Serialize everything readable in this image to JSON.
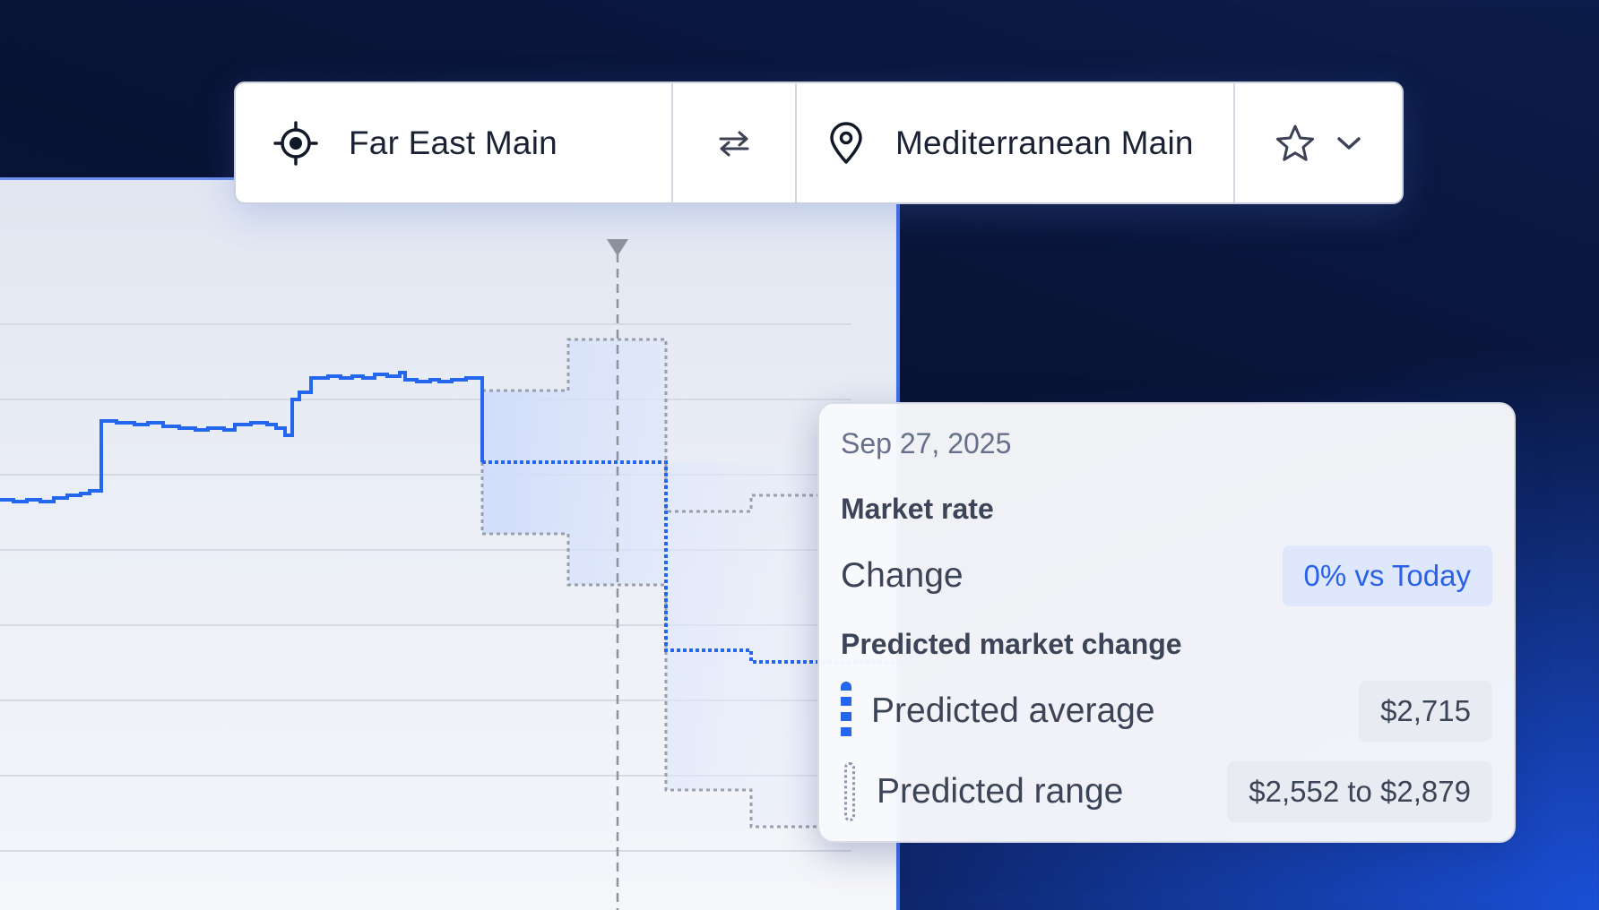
{
  "route": {
    "origin_label": "Far East Main",
    "destination_label": "Mediterranean Main",
    "origin_icon": "crosshair-icon",
    "swap_icon": "swap-icon",
    "destination_icon": "map-pin-icon",
    "favorite_icon": "star-icon",
    "dropdown_icon": "chevron-down-icon"
  },
  "tooltip": {
    "date": "Sep 27, 2025",
    "market_rate_heading": "Market rate",
    "change_label": "Change",
    "change_value": "0% vs Today",
    "predicted_heading": "Predicted market change",
    "predicted_average_label": "Predicted average",
    "predicted_average_value": "$2,715",
    "predicted_range_label": "Predicted range",
    "predicted_range_value": "$2,552 to $2,879"
  },
  "colors": {
    "accent": "#2566ee",
    "range_fill": "#c9d8fb",
    "band_stroke": "#9aa0aa"
  }
}
